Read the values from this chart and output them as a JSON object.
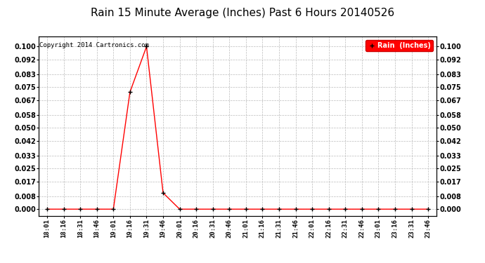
{
  "title": "Rain 15 Minute Average (Inches) Past 6 Hours 20140526",
  "copyright": "Copyright 2014 Cartronics.com",
  "legend_label": "Rain  (Inches)",
  "legend_bg": "#ff0000",
  "legend_text_color": "#ffffff",
  "line_color": "#ff0000",
  "marker_color": "#000000",
  "background_color": "#ffffff",
  "grid_color": "#bbbbbb",
  "title_fontsize": 11,
  "yticks": [
    0.0,
    0.008,
    0.017,
    0.025,
    0.033,
    0.042,
    0.05,
    0.058,
    0.067,
    0.075,
    0.083,
    0.092,
    0.1
  ],
  "ylim": [
    -0.004,
    0.106
  ],
  "x_labels": [
    "18:01",
    "18:16",
    "18:31",
    "18:46",
    "19:01",
    "19:16",
    "19:31",
    "19:46",
    "20:01",
    "20:16",
    "20:31",
    "20:46",
    "21:01",
    "21:16",
    "21:31",
    "21:46",
    "22:01",
    "22:16",
    "22:31",
    "22:46",
    "23:01",
    "23:16",
    "23:31",
    "23:46"
  ],
  "data_points": {
    "18:01": 0.0,
    "18:16": 0.0,
    "18:31": 0.0,
    "18:46": 0.0,
    "19:01": 0.0,
    "19:16": 0.072,
    "19:31": 0.1,
    "19:46": 0.01,
    "20:01": 0.0,
    "20:16": 0.0,
    "20:31": 0.0,
    "20:46": 0.0,
    "21:01": 0.0,
    "21:16": 0.0,
    "21:31": 0.0,
    "21:46": 0.0,
    "22:01": 0.0,
    "22:16": 0.0,
    "22:31": 0.0,
    "22:46": 0.0,
    "23:01": 0.0,
    "23:16": 0.0,
    "23:31": 0.0,
    "23:46": 0.0
  }
}
